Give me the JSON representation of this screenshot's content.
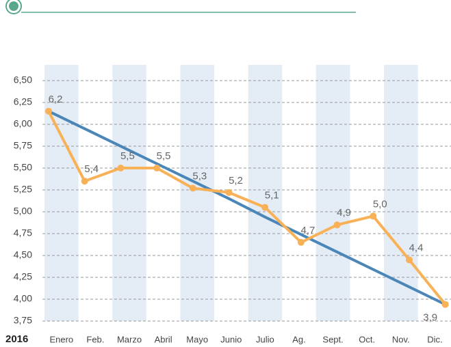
{
  "chart_data": {
    "type": "line",
    "year": "2016",
    "categories": [
      "Enero",
      "Feb.",
      "Marzo",
      "Abril",
      "Mayo",
      "Junio",
      "Julio",
      "Ag.",
      "Sept.",
      "Oct.",
      "Nov.",
      "Dic."
    ],
    "series": [
      {
        "color": "#f9b157",
        "values": [
          6.15,
          5.35,
          5.5,
          5.5,
          5.27,
          5.22,
          5.05,
          4.65,
          4.85,
          4.95,
          4.45,
          3.94
        ],
        "value_labels": [
          "6,2",
          "5,4",
          "5,5",
          "5,5",
          "5,3",
          "5,2",
          "5,1",
          "4,7",
          "4,9",
          "5,0",
          "4,4",
          "3,9"
        ]
      },
      {
        "color": "#4a86b8",
        "values": [
          6.15,
          5.95,
          5.75,
          5.55,
          5.35,
          5.15,
          4.94,
          4.74,
          4.54,
          4.34,
          4.14,
          3.94
        ]
      }
    ],
    "ylim": [
      3.75,
      6.68
    ],
    "yticks": [
      {
        "value": 3.75,
        "label": "3,75"
      },
      {
        "value": 4.0,
        "label": "4,00"
      },
      {
        "value": 4.25,
        "label": "4,25"
      },
      {
        "value": 4.5,
        "label": "4,50"
      },
      {
        "value": 4.75,
        "label": "4,75"
      },
      {
        "value": 5.0,
        "label": "5,00"
      },
      {
        "value": 5.25,
        "label": "5,25"
      },
      {
        "value": 5.5,
        "label": "5,50"
      },
      {
        "value": 5.75,
        "label": "5,75"
      },
      {
        "value": 6.0,
        "label": "6,00"
      },
      {
        "value": 6.25,
        "label": "6,25"
      },
      {
        "value": 6.5,
        "label": "6,50"
      }
    ],
    "grid": true
  }
}
